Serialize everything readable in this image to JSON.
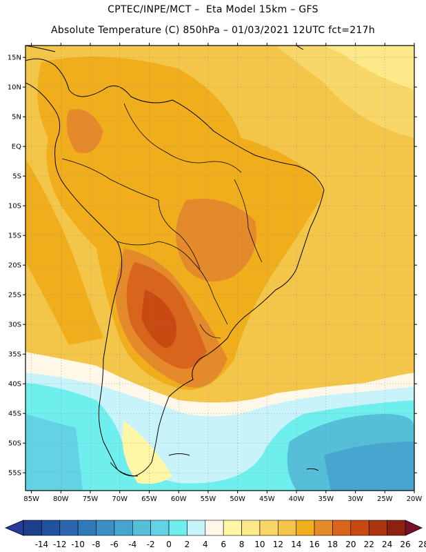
{
  "title": {
    "line1": "CPTEC/INPE/MCT –  Eta Model 15km – GFS",
    "line2": "Absolute Temperature (C) 850hPa – 01/03/2021 12UTC fct=217h"
  },
  "map": {
    "lon_range": [
      -86,
      -20
    ],
    "lat_range": [
      -58,
      17
    ],
    "lat_ticks": [
      {
        "value": 15,
        "label": "15N"
      },
      {
        "value": 10,
        "label": "10N"
      },
      {
        "value": 5,
        "label": "5N"
      },
      {
        "value": 0,
        "label": "EQ"
      },
      {
        "value": -5,
        "label": "5S"
      },
      {
        "value": -10,
        "label": "10S"
      },
      {
        "value": -15,
        "label": "15S"
      },
      {
        "value": -20,
        "label": "20S"
      },
      {
        "value": -25,
        "label": "25S"
      },
      {
        "value": -30,
        "label": "30S"
      },
      {
        "value": -35,
        "label": "35S"
      },
      {
        "value": -40,
        "label": "40S"
      },
      {
        "value": -45,
        "label": "45S"
      },
      {
        "value": -50,
        "label": "50S"
      },
      {
        "value": -55,
        "label": "55S"
      }
    ],
    "lon_ticks": [
      {
        "value": -85,
        "label": "85W"
      },
      {
        "value": -80,
        "label": "80W"
      },
      {
        "value": -75,
        "label": "75W"
      },
      {
        "value": -70,
        "label": "70W"
      },
      {
        "value": -65,
        "label": "65W"
      },
      {
        "value": -60,
        "label": "60W"
      },
      {
        "value": -55,
        "label": "55W"
      },
      {
        "value": -50,
        "label": "50W"
      },
      {
        "value": -45,
        "label": "45W"
      },
      {
        "value": -40,
        "label": "40W"
      },
      {
        "value": -35,
        "label": "35W"
      },
      {
        "value": -30,
        "label": "30W"
      },
      {
        "value": -25,
        "label": "25W"
      },
      {
        "value": -20,
        "label": "20W"
      }
    ]
  },
  "colorbar": {
    "labels": [
      "-14",
      "-12",
      "-10",
      "-8",
      "-6",
      "-4",
      "-2",
      "0",
      "2",
      "4",
      "6",
      "8",
      "10",
      "12",
      "14",
      "16",
      "18",
      "20",
      "22",
      "24",
      "26",
      "28"
    ],
    "colors": [
      "#1c3e8c",
      "#2152a0",
      "#2966ae",
      "#3079b8",
      "#3a8fc4",
      "#46a6d0",
      "#55bed9",
      "#62d2e4",
      "#6feeee",
      "#c9f3fb",
      "#fff8e8",
      "#fff7a6",
      "#fde98a",
      "#f8d768",
      "#f3c549",
      "#f0ae1c",
      "#e48a2a",
      "#d9641c",
      "#c84a12",
      "#aa3510",
      "#8c220e"
    ],
    "under_color": "#2a3a9a",
    "over_color": "#7a0f28"
  }
}
